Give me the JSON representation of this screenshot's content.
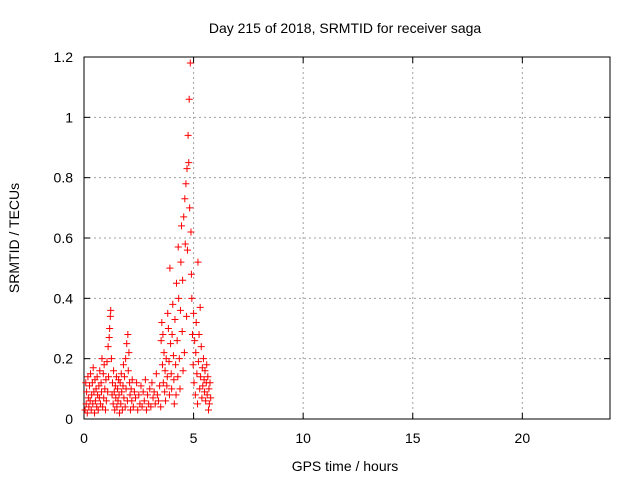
{
  "chart_data": {
    "type": "scatter",
    "title": "Day 215 of 2018, SRMTID for receiver saga",
    "xlabel": "GPS time / hours",
    "ylabel": "SRMTID / TECUs",
    "xlim": [
      0,
      24
    ],
    "ylim": [
      0,
      1.2
    ],
    "xticks": [
      0,
      5,
      10,
      15,
      20
    ],
    "xtick_labels": [
      "0",
      "5",
      "10",
      "15",
      "20"
    ],
    "yticks": [
      0,
      0.2,
      0.4,
      0.6,
      0.8,
      1,
      1.2
    ],
    "ytick_labels": [
      "0",
      "0.2",
      "0.4",
      "0.6",
      "0.8",
      "1",
      "1.2"
    ],
    "grid": true,
    "marker": "+",
    "colors": {
      "points": "#ff0000",
      "grid": "#a0a0a0",
      "axes": "#000000"
    },
    "series": [
      {
        "name": "SRMTID",
        "points": [
          [
            0.05,
            0.03
          ],
          [
            0.08,
            0.12
          ],
          [
            0.1,
            0.05
          ],
          [
            0.12,
            0.09
          ],
          [
            0.15,
            0.02
          ],
          [
            0.18,
            0.14
          ],
          [
            0.2,
            0.07
          ],
          [
            0.22,
            0.04
          ],
          [
            0.25,
            0.11
          ],
          [
            0.28,
            0.06
          ],
          [
            0.3,
            0.15
          ],
          [
            0.33,
            0.03
          ],
          [
            0.35,
            0.08
          ],
          [
            0.38,
            0.12
          ],
          [
            0.4,
            0.05
          ],
          [
            0.42,
            0.17
          ],
          [
            0.45,
            0.09
          ],
          [
            0.48,
            0.02
          ],
          [
            0.5,
            0.13
          ],
          [
            0.52,
            0.06
          ],
          [
            0.55,
            0.1
          ],
          [
            0.58,
            0.04
          ],
          [
            0.6,
            0.14
          ],
          [
            0.62,
            0.08
          ],
          [
            0.65,
            0.03
          ],
          [
            0.68,
            0.11
          ],
          [
            0.7,
            0.07
          ],
          [
            0.72,
            0.16
          ],
          [
            0.75,
            0.05
          ],
          [
            0.78,
            0.12
          ],
          [
            0.8,
            0.09
          ],
          [
            0.82,
            0.2
          ],
          [
            0.85,
            0.04
          ],
          [
            0.88,
            0.15
          ],
          [
            0.9,
            0.07
          ],
          [
            0.92,
            0.18
          ],
          [
            0.95,
            0.1
          ],
          [
            0.98,
            0.03
          ],
          [
            1.0,
            0.13
          ],
          [
            1.02,
            0.06
          ],
          [
            1.05,
            0.19
          ],
          [
            1.08,
            0.09
          ],
          [
            1.1,
            0.24
          ],
          [
            1.12,
            0.14
          ],
          [
            1.15,
            0.27
          ],
          [
            1.17,
            0.3
          ],
          [
            1.2,
            0.34
          ],
          [
            1.22,
            0.36
          ],
          [
            1.25,
            0.2
          ],
          [
            1.28,
            0.08
          ],
          [
            1.3,
            0.12
          ],
          [
            1.33,
            0.05
          ],
          [
            1.35,
            0.16
          ],
          [
            1.38,
            0.09
          ],
          [
            1.4,
            0.03
          ],
          [
            1.43,
            0.11
          ],
          [
            1.45,
            0.07
          ],
          [
            1.48,
            0.14
          ],
          [
            1.5,
            0.04
          ],
          [
            1.53,
            0.1
          ],
          [
            1.55,
            0.06
          ],
          [
            1.58,
            0.13
          ],
          [
            1.6,
            0.08
          ],
          [
            1.62,
            0.02
          ],
          [
            1.65,
            0.12
          ],
          [
            1.68,
            0.05
          ],
          [
            1.7,
            0.15
          ],
          [
            1.72,
            0.09
          ],
          [
            1.75,
            0.03
          ],
          [
            1.78,
            0.11
          ],
          [
            1.8,
            0.18
          ],
          [
            1.82,
            0.07
          ],
          [
            1.85,
            0.14
          ],
          [
            1.88,
            0.04
          ],
          [
            1.9,
            0.2
          ],
          [
            1.92,
            0.1
          ],
          [
            1.95,
            0.25
          ],
          [
            1.98,
            0.06
          ],
          [
            2.0,
            0.28
          ],
          [
            2.02,
            0.16
          ],
          [
            2.05,
            0.22
          ],
          [
            2.08,
            0.12
          ],
          [
            2.1,
            0.08
          ],
          [
            2.12,
            0.03
          ],
          [
            2.15,
            0.1
          ],
          [
            2.18,
            0.06
          ],
          [
            2.2,
            0.13
          ],
          [
            2.25,
            0.04
          ],
          [
            2.3,
            0.09
          ],
          [
            2.35,
            0.07
          ],
          [
            2.4,
            0.12
          ],
          [
            2.45,
            0.03
          ],
          [
            2.5,
            0.08
          ],
          [
            2.55,
            0.05
          ],
          [
            2.6,
            0.11
          ],
          [
            2.65,
            0.04
          ],
          [
            2.7,
            0.09
          ],
          [
            2.75,
            0.06
          ],
          [
            2.8,
            0.13
          ],
          [
            2.85,
            0.03
          ],
          [
            2.9,
            0.08
          ],
          [
            2.95,
            0.05
          ],
          [
            3.0,
            0.1
          ],
          [
            3.05,
            0.04
          ],
          [
            3.1,
            0.12
          ],
          [
            3.15,
            0.07
          ],
          [
            3.2,
            0.09
          ],
          [
            3.25,
            0.05
          ],
          [
            3.3,
            0.15
          ],
          [
            3.35,
            0.08
          ],
          [
            3.4,
            0.06
          ],
          [
            3.45,
            0.11
          ],
          [
            3.5,
            0.04
          ],
          [
            3.52,
            0.26
          ],
          [
            3.55,
            0.32
          ],
          [
            3.58,
            0.18
          ],
          [
            3.6,
            0.28
          ],
          [
            3.62,
            0.12
          ],
          [
            3.65,
            0.22
          ],
          [
            3.68,
            0.09
          ],
          [
            3.7,
            0.16
          ],
          [
            3.72,
            0.06
          ],
          [
            3.75,
            0.2
          ],
          [
            3.78,
            0.11
          ],
          [
            3.8,
            0.14
          ],
          [
            3.82,
            0.35
          ],
          [
            3.85,
            0.3
          ],
          [
            3.88,
            0.19
          ],
          [
            3.9,
            0.08
          ],
          [
            3.92,
            0.5
          ],
          [
            3.95,
            0.25
          ],
          [
            3.98,
            0.15
          ],
          [
            4.0,
            0.1
          ],
          [
            4.02,
            0.28
          ],
          [
            4.05,
            0.38
          ],
          [
            4.08,
            0.21
          ],
          [
            4.1,
            0.13
          ],
          [
            4.12,
            0.05
          ],
          [
            4.15,
            0.33
          ],
          [
            4.18,
            0.18
          ],
          [
            4.2,
            0.08
          ],
          [
            4.22,
            0.45
          ],
          [
            4.25,
            0.26
          ],
          [
            4.28,
            0.14
          ],
          [
            4.3,
            0.57
          ],
          [
            4.32,
            0.4
          ],
          [
            4.35,
            0.2
          ],
          [
            4.38,
            0.1
          ],
          [
            4.4,
            0.36
          ],
          [
            4.42,
            0.52
          ],
          [
            4.45,
            0.64
          ],
          [
            4.48,
            0.29
          ],
          [
            4.5,
            0.46
          ],
          [
            4.52,
            0.16
          ],
          [
            4.55,
            0.67
          ],
          [
            4.58,
            0.22
          ],
          [
            4.6,
            0.73
          ],
          [
            4.62,
            0.58
          ],
          [
            4.65,
            0.78
          ],
          [
            4.68,
            0.34
          ],
          [
            4.7,
            0.83
          ],
          [
            4.72,
            0.56
          ],
          [
            4.75,
            0.94
          ],
          [
            4.78,
            0.85
          ],
          [
            4.8,
            1.06
          ],
          [
            4.82,
            0.7
          ],
          [
            4.85,
            1.18
          ],
          [
            4.88,
            0.62
          ],
          [
            4.9,
            0.48
          ],
          [
            4.92,
            0.4
          ],
          [
            4.95,
            0.28
          ],
          [
            4.98,
            0.18
          ],
          [
            5.0,
            0.35
          ],
          [
            5.02,
            0.12
          ],
          [
            5.05,
            0.26
          ],
          [
            5.08,
            0.08
          ],
          [
            5.1,
            0.22
          ],
          [
            5.12,
            0.32
          ],
          [
            5.15,
            0.15
          ],
          [
            5.18,
            0.05
          ],
          [
            5.2,
            0.52
          ],
          [
            5.22,
            0.19
          ],
          [
            5.25,
            0.28
          ],
          [
            5.28,
            0.1
          ],
          [
            5.3,
            0.37
          ],
          [
            5.32,
            0.14
          ],
          [
            5.35,
            0.24
          ],
          [
            5.38,
            0.07
          ],
          [
            5.4,
            0.17
          ],
          [
            5.42,
            0.11
          ],
          [
            5.45,
            0.2
          ],
          [
            5.48,
            0.13
          ],
          [
            5.5,
            0.09
          ],
          [
            5.52,
            0.16
          ],
          [
            5.55,
            0.06
          ],
          [
            5.58,
            0.12
          ],
          [
            5.6,
            0.18
          ],
          [
            5.62,
            0.08
          ],
          [
            5.65,
            0.14
          ],
          [
            5.68,
            0.03
          ],
          [
            5.7,
            0.1
          ],
          [
            5.72,
            0.05
          ],
          [
            5.75,
            0.12
          ],
          [
            5.78,
            0.07
          ]
        ]
      }
    ]
  }
}
